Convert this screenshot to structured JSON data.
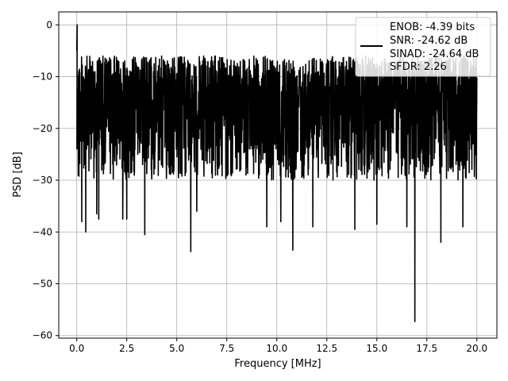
{
  "chart_data": {
    "type": "line",
    "title": "",
    "xlabel": "Frequency [MHz]",
    "ylabel": "PSD [dB]",
    "xlim": [
      -0.9,
      21.0
    ],
    "ylim": [
      -60.5,
      2.5
    ],
    "xticks": [
      0.0,
      2.5,
      5.0,
      7.5,
      10.0,
      12.5,
      15.0,
      17.5,
      20.0
    ],
    "xtick_labels": [
      "0.0",
      "2.5",
      "5.0",
      "7.5",
      "10.0",
      "12.5",
      "15.0",
      "17.5",
      "20.0"
    ],
    "yticks": [
      0,
      -10,
      -20,
      -30,
      -40,
      -50,
      -60
    ],
    "ytick_labels": [
      "0",
      "−10",
      "−20",
      "−30",
      "−40",
      "−50",
      "−60"
    ],
    "grid": true,
    "legend_position": "top-right",
    "line_color": "#000000",
    "series": [
      {
        "name": "ENOB: -4.39 bits\nSNR: -24.62 dB\nSINAD: -24.64 dB\nSFDR: 2.26",
        "legend_lines": [
          "ENOB: -4.39 bits",
          "SNR: -24.62 dB",
          "SINAD: -24.64 dB",
          "SFDR: 2.26"
        ],
        "x_range": [
          0.0,
          20.0
        ],
        "peak": {
          "x": 0.02,
          "y": 0.0
        },
        "deep_notches": [
          {
            "x": 0.25,
            "y": -38.0
          },
          {
            "x": 0.45,
            "y": -40.0
          },
          {
            "x": 1.0,
            "y": -36.5
          },
          {
            "x": 1.1,
            "y": -37.5
          },
          {
            "x": 2.3,
            "y": -37.5
          },
          {
            "x": 2.5,
            "y": -37.5
          },
          {
            "x": 3.4,
            "y": -40.5
          },
          {
            "x": 5.7,
            "y": -43.8
          },
          {
            "x": 6.0,
            "y": -36.0
          },
          {
            "x": 9.5,
            "y": -39.0
          },
          {
            "x": 10.2,
            "y": -38.0
          },
          {
            "x": 10.8,
            "y": -43.5
          },
          {
            "x": 11.8,
            "y": -39.0
          },
          {
            "x": 13.9,
            "y": -39.5
          },
          {
            "x": 15.0,
            "y": -38.5
          },
          {
            "x": 16.5,
            "y": -39.0
          },
          {
            "x": 16.9,
            "y": -57.3
          },
          {
            "x": 18.2,
            "y": -42.0
          },
          {
            "x": 19.3,
            "y": -39.0
          }
        ]
      }
    ]
  }
}
